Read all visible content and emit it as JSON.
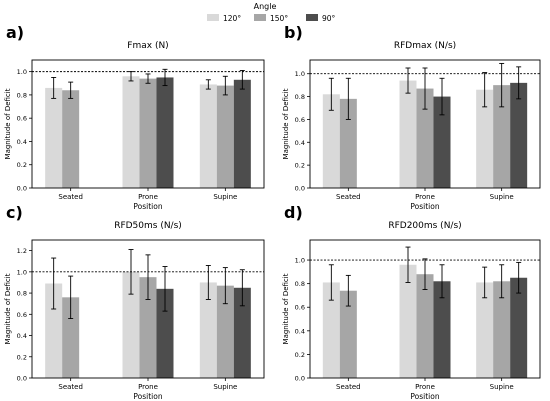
{
  "legend": {
    "title": "Angle",
    "entries": [
      {
        "label": "120°",
        "color": "#d9d9d9"
      },
      {
        "label": "150°",
        "color": "#a6a6a6"
      },
      {
        "label": "90°",
        "color": "#4d4d4d"
      }
    ]
  },
  "chart_data": [
    {
      "type": "bar",
      "panel_label": "a)",
      "title": "Fmax (N)",
      "xlabel": "Position",
      "ylabel": "Magnitude of Deficit",
      "categories": [
        "Seated",
        "Prone",
        "Supine"
      ],
      "yticks": [
        "0.0",
        "0.2",
        "0.4",
        "0.6",
        "0.8",
        "1.0"
      ],
      "ylim": [
        0,
        1.1
      ],
      "reference_line": 1.0,
      "series": [
        {
          "name": "120°",
          "values": [
            0.86,
            0.96,
            0.89
          ],
          "errors": [
            0.09,
            0.04,
            0.04
          ]
        },
        {
          "name": "150°",
          "values": [
            0.84,
            0.94,
            0.88
          ],
          "errors": [
            0.07,
            0.04,
            0.08
          ]
        },
        {
          "name": "90°",
          "values": [
            null,
            0.95,
            0.93
          ],
          "errors": [
            null,
            0.07,
            0.08
          ]
        }
      ]
    },
    {
      "type": "bar",
      "panel_label": "b)",
      "title": "RFDmax (N/s)",
      "xlabel": "Position",
      "ylabel": "Magnitude of Deficit",
      "categories": [
        "Seated",
        "Prone",
        "Supine"
      ],
      "yticks": [
        "0.0",
        "0.2",
        "0.4",
        "0.6",
        "0.8",
        "1.0"
      ],
      "ylim": [
        0,
        1.12
      ],
      "reference_line": 1.0,
      "series": [
        {
          "name": "120°",
          "values": [
            0.82,
            0.94,
            0.86
          ],
          "errors": [
            0.14,
            0.11,
            0.15
          ]
        },
        {
          "name": "150°",
          "values": [
            0.78,
            0.87,
            0.9
          ],
          "errors": [
            0.18,
            0.18,
            0.19
          ]
        },
        {
          "name": "90°",
          "values": [
            null,
            0.8,
            0.92
          ],
          "errors": [
            null,
            0.16,
            0.14
          ]
        }
      ]
    },
    {
      "type": "bar",
      "panel_label": "c)",
      "title": "RFD50ms (N/s)",
      "xlabel": "Position",
      "ylabel": "Magnitude of Deficit",
      "categories": [
        "Seated",
        "Prone",
        "Supine"
      ],
      "yticks": [
        "0.0",
        "0.2",
        "0.4",
        "0.6",
        "0.8",
        "1.0",
        "1.2"
      ],
      "ylim": [
        0,
        1.3
      ],
      "reference_line": 1.0,
      "series": [
        {
          "name": "120°",
          "values": [
            0.89,
            1.0,
            0.9
          ],
          "errors": [
            0.24,
            0.21,
            0.16
          ]
        },
        {
          "name": "150°",
          "values": [
            0.76,
            0.95,
            0.87
          ],
          "errors": [
            0.2,
            0.21,
            0.17
          ]
        },
        {
          "name": "90°",
          "values": [
            null,
            0.84,
            0.85
          ],
          "errors": [
            null,
            0.21,
            0.17
          ]
        }
      ]
    },
    {
      "type": "bar",
      "panel_label": "d)",
      "title": "RFD200ms (N/s)",
      "xlabel": "Position",
      "ylabel": "Magnitude of Deficit",
      "categories": [
        "Seated",
        "Prone",
        "Supine"
      ],
      "yticks": [
        "0.0",
        "0.2",
        "0.4",
        "0.6",
        "0.8",
        "1.0"
      ],
      "ylim": [
        0,
        1.17
      ],
      "reference_line": 1.0,
      "series": [
        {
          "name": "120°",
          "values": [
            0.81,
            0.96,
            0.81
          ],
          "errors": [
            0.15,
            0.15,
            0.13
          ]
        },
        {
          "name": "150°",
          "values": [
            0.74,
            0.88,
            0.82
          ],
          "errors": [
            0.13,
            0.13,
            0.14
          ]
        },
        {
          "name": "90°",
          "values": [
            null,
            0.82,
            0.85
          ],
          "errors": [
            null,
            0.14,
            0.13
          ]
        }
      ]
    }
  ]
}
